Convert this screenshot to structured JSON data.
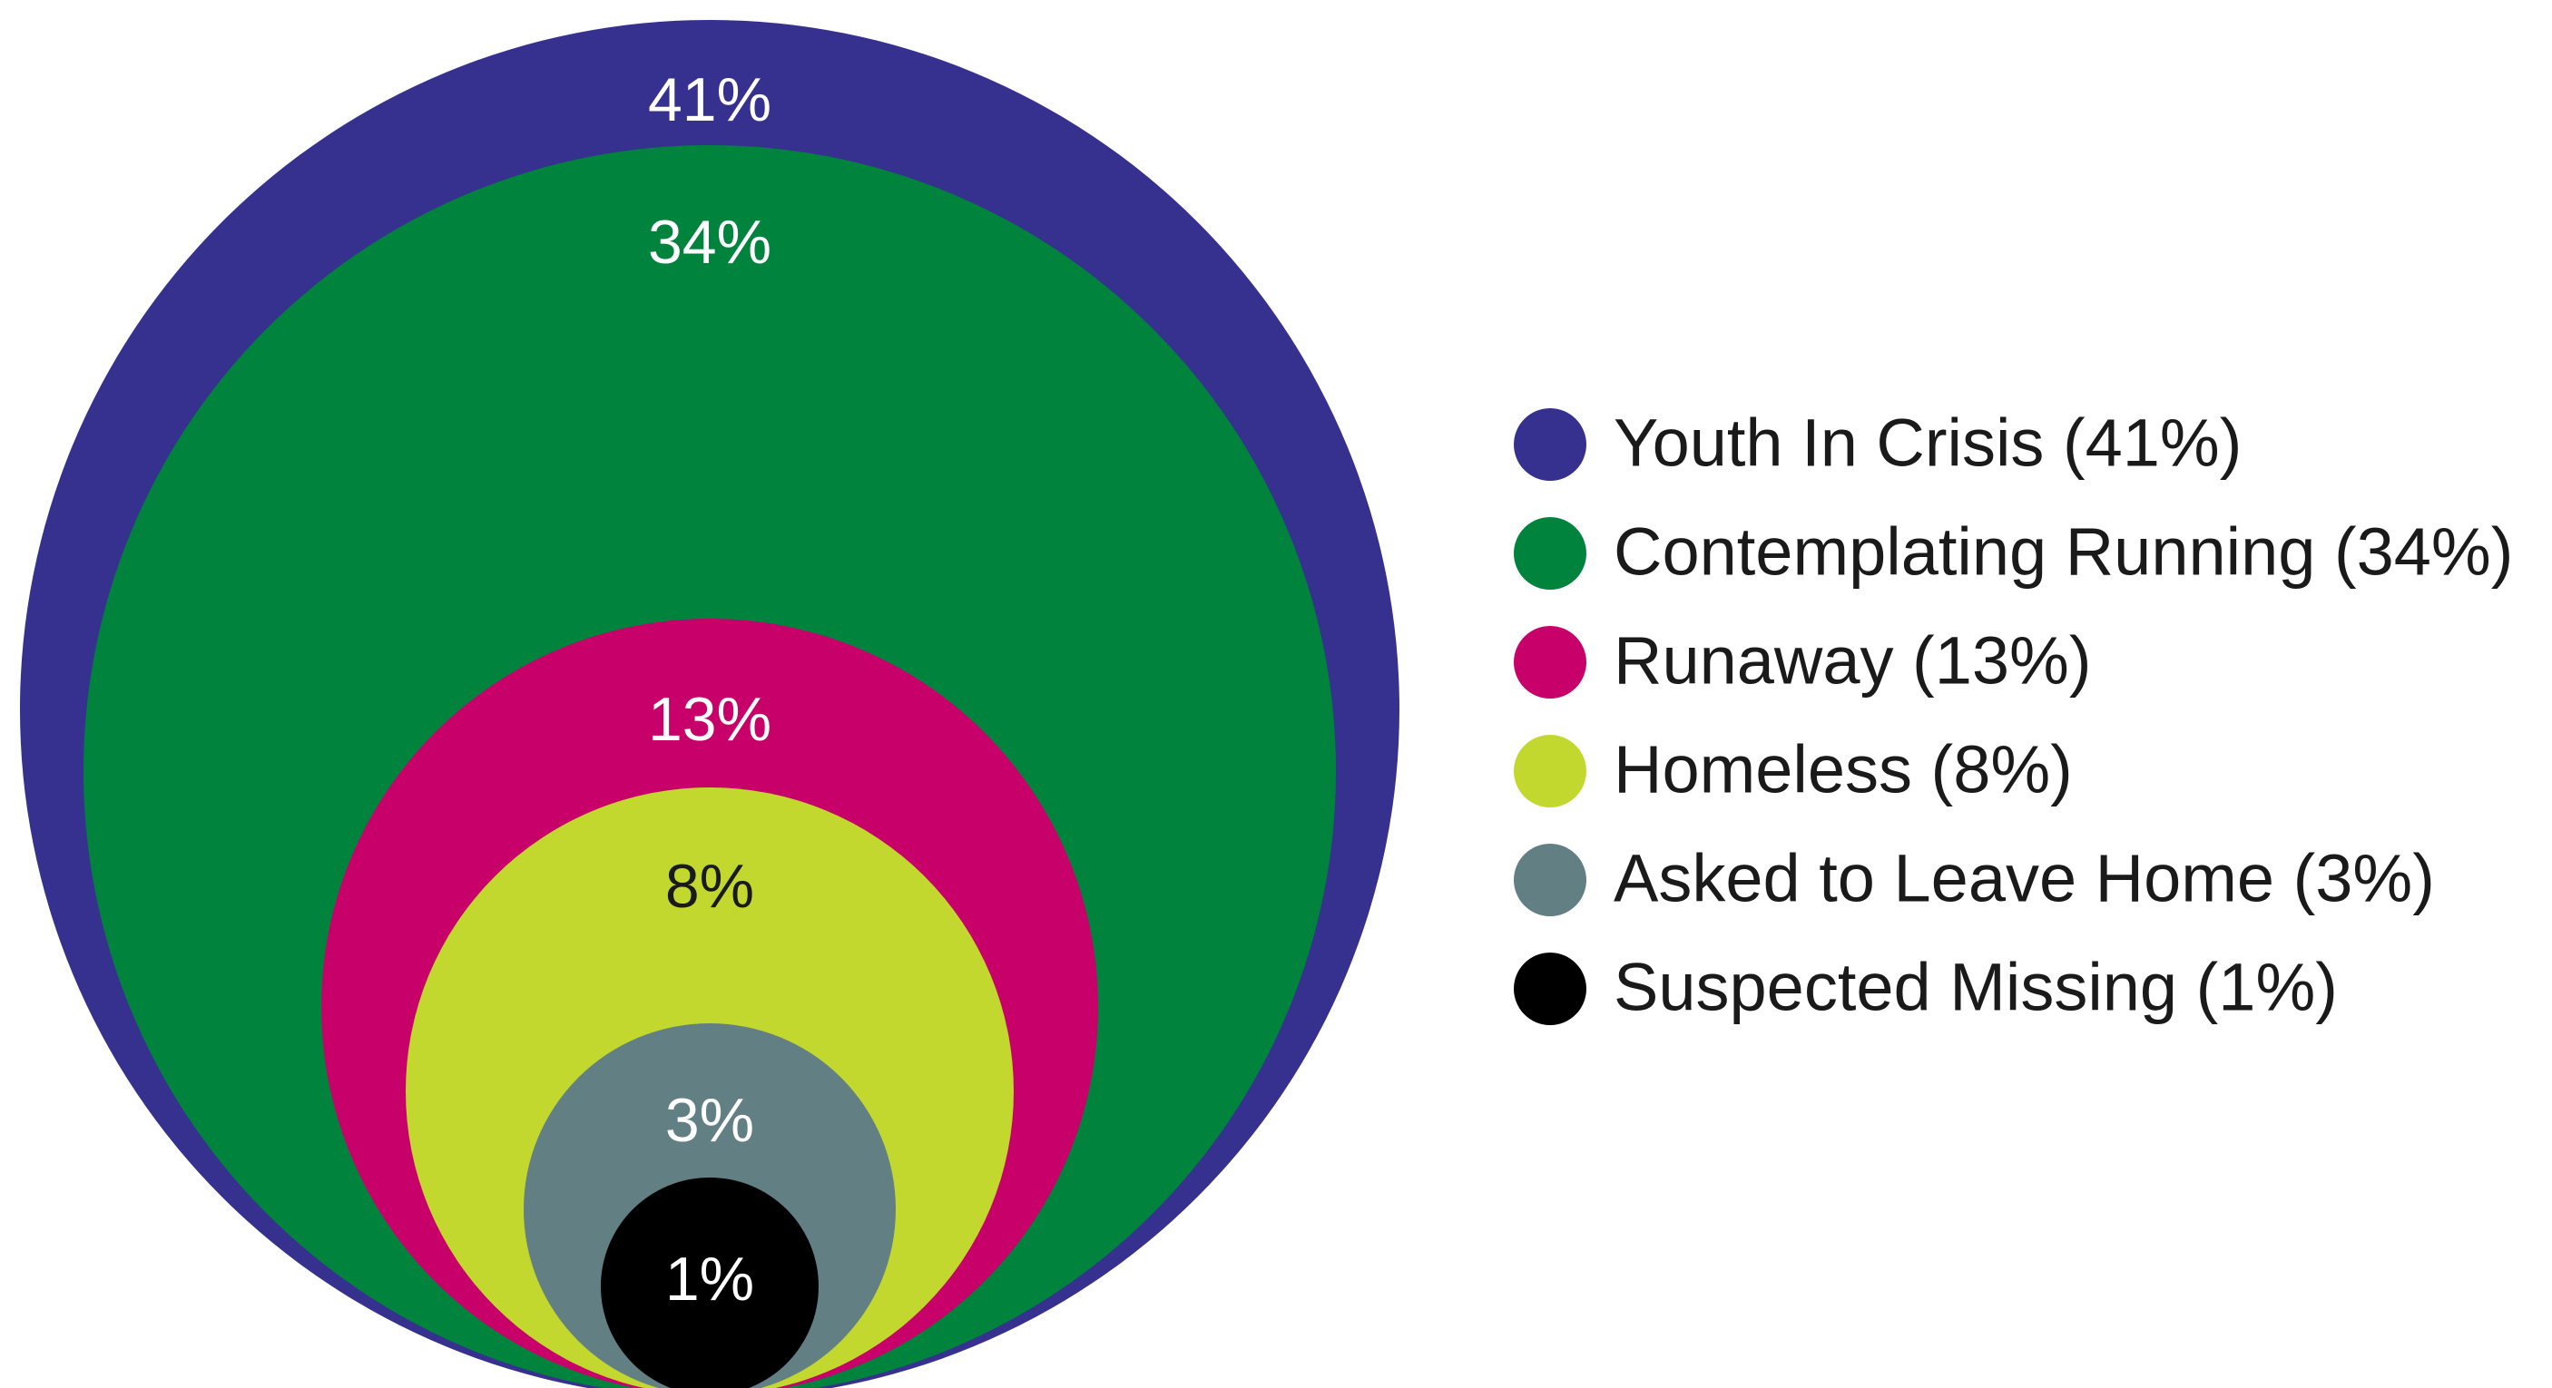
{
  "chart_data": {
    "type": "nested-circles",
    "title": "",
    "legend_position": "right",
    "series": [
      {
        "name": "Youth In Crisis",
        "value": 41,
        "label": "41%",
        "legend": "Youth In Crisis (41%)",
        "color": "#36318f",
        "label_color": "#ffffff"
      },
      {
        "name": "Contemplating Running",
        "value": 34,
        "label": "34%",
        "legend": "Contemplating Running (34%)",
        "color": "#00843d",
        "label_color": "#ffffff"
      },
      {
        "name": "Runaway",
        "value": 13,
        "label": "13%",
        "legend": "Runaway (13%)",
        "color": "#c8006a",
        "label_color": "#ffffff"
      },
      {
        "name": "Homeless",
        "value": 8,
        "label": "8%",
        "legend": "Homeless (8%)",
        "color": "#c2d82e",
        "label_color": "#1a1a1a"
      },
      {
        "name": "Asked to Leave Home",
        "value": 3,
        "label": "3%",
        "legend": "Asked to Leave Home (3%)",
        "color": "#627f84",
        "label_color": "#ffffff"
      },
      {
        "name": "Suspected Missing",
        "value": 1,
        "label": "1%",
        "legend": "Suspected Missing (1%)",
        "color": "#000000",
        "label_color": "#ffffff"
      }
    ]
  }
}
